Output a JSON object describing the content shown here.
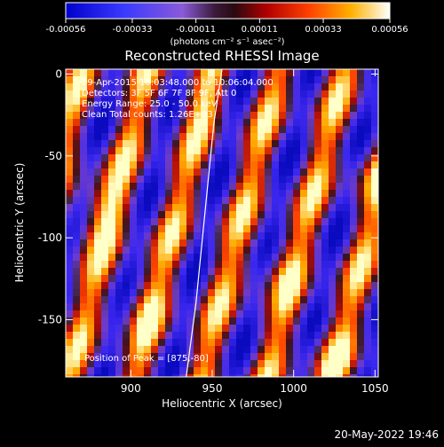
{
  "chart_data": {
    "type": "heatmap",
    "title": "Reconstructed RHESSI Image",
    "xlabel": "Heliocentric X (arcsec)",
    "ylabel": "Heliocentric Y (arcsec)",
    "xlim": [
      860,
      1052
    ],
    "ylim": [
      -185,
      3
    ],
    "xticks": [
      {
        "value": 900,
        "label": "900"
      },
      {
        "value": 950,
        "label": "950"
      },
      {
        "value": 1000,
        "label": "1000"
      },
      {
        "value": 1050,
        "label": "1050"
      }
    ],
    "yticks": [
      {
        "value": 0,
        "label": "0"
      },
      {
        "value": -50,
        "label": "-50"
      },
      {
        "value": -100,
        "label": "-100"
      },
      {
        "value": -150,
        "label": "-150"
      }
    ],
    "colorbar": {
      "range": [
        -0.00056,
        0.00056
      ],
      "ticks": [
        {
          "value": -0.00056,
          "label": "-0.00056"
        },
        {
          "value": -0.00033,
          "label": "-0.00033"
        },
        {
          "value": -0.00011,
          "label": "-0.00011"
        },
        {
          "value": 0.00011,
          "label": "0.00011"
        },
        {
          "value": 0.00033,
          "label": "0.00033"
        },
        {
          "value": 0.00056,
          "label": "0.00056"
        }
      ],
      "unit_label": "(photons cm⁻² s⁻¹ asec⁻²)"
    },
    "annotations": [
      "29-Apr-2015 10:03:48.000 to 10:06:04.000",
      "Detectors: 3F 5F 6F 7F 8F 9F, Att 0",
      "Energy Range: 25.0 - 50.0 keV",
      "Clean     Total counts: 1.26E+03"
    ],
    "peak_label": "Position of Peak = [875,-80]",
    "peak": [
      875,
      -80
    ],
    "limb_curve": [
      [
        934,
        -185
      ],
      [
        940,
        -140
      ],
      [
        946,
        -80
      ],
      [
        951,
        -30
      ],
      [
        956,
        3
      ]
    ],
    "stripe_direction_deg": -62,
    "colors": {
      "negative": "#0000ff",
      "neutral": "#4a2a4a",
      "positive_mid": "#ff2a00",
      "positive_high": "#ffff80"
    }
  },
  "footer": {
    "timestamp": "20-May-2022 19:46"
  }
}
